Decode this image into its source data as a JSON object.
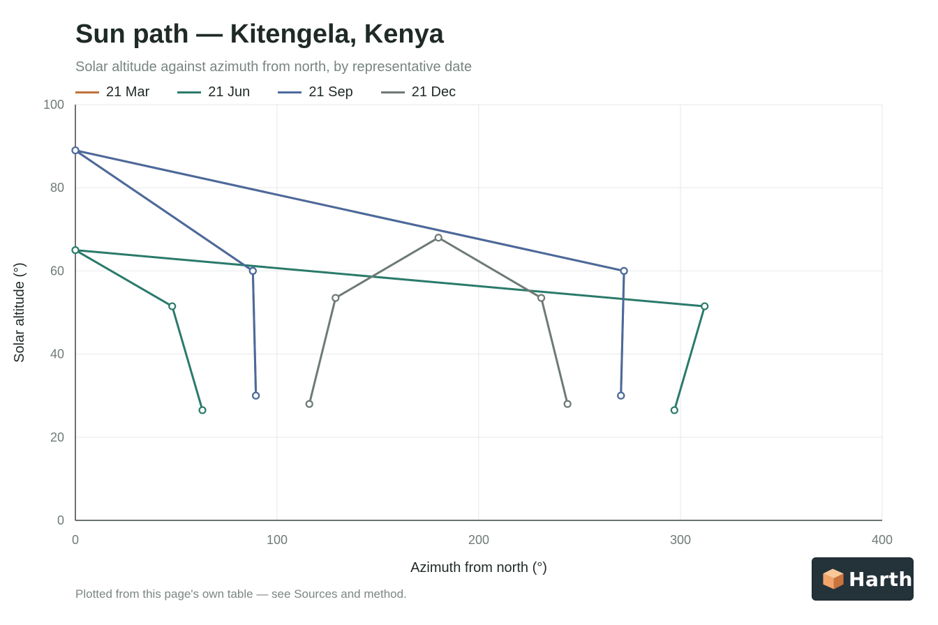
{
  "header": {
    "title": "Sun path — Kitengela, Kenya",
    "subtitle": "Solar altitude against azimuth from north, by representative date"
  },
  "footer": {
    "note": "Plotted from this page's own table — see Sources and method."
  },
  "brand": {
    "name": "Harth",
    "logo_icon": "harth-cube-logo",
    "logo_colors": [
      "#f2a46b",
      "#f8c898",
      "#c9733f"
    ],
    "badge_color": "#24323a"
  },
  "chart_data": {
    "type": "line",
    "title": "Sun path — Kitengela, Kenya",
    "subtitle": "Solar altitude against azimuth from north, by representative date",
    "xlabel": "Azimuth from north (°)",
    "ylabel": "Solar altitude (°)",
    "xlim": [
      0,
      400
    ],
    "ylim": [
      0,
      100
    ],
    "x_ticks": [
      0,
      100,
      200,
      300,
      400
    ],
    "y_ticks": [
      0,
      20,
      40,
      60,
      80,
      100
    ],
    "grid": true,
    "legend_position": "top-left",
    "series": [
      {
        "name": "21 Mar",
        "color": "#c0703a",
        "points": [
          [
            89.5,
            30
          ],
          [
            88,
            60
          ],
          [
            0,
            89
          ],
          [
            272,
            60
          ],
          [
            270.5,
            30
          ]
        ]
      },
      {
        "name": "21 Jun",
        "color": "#2a7a6a",
        "points": [
          [
            63,
            26.5
          ],
          [
            48,
            51.5
          ],
          [
            0,
            65
          ],
          [
            312,
            51.5
          ],
          [
            297,
            26.5
          ]
        ]
      },
      {
        "name": "21 Sep",
        "color": "#4a6a9e",
        "points": [
          [
            89.5,
            30
          ],
          [
            88,
            60
          ],
          [
            0,
            89
          ],
          [
            272,
            60
          ],
          [
            270.5,
            30
          ]
        ]
      },
      {
        "name": "21 Dec",
        "color": "#6e7a74",
        "points": [
          [
            116,
            28
          ],
          [
            129,
            53.5
          ],
          [
            180,
            68
          ],
          [
            231,
            53.5
          ],
          [
            244,
            28
          ]
        ]
      }
    ]
  }
}
